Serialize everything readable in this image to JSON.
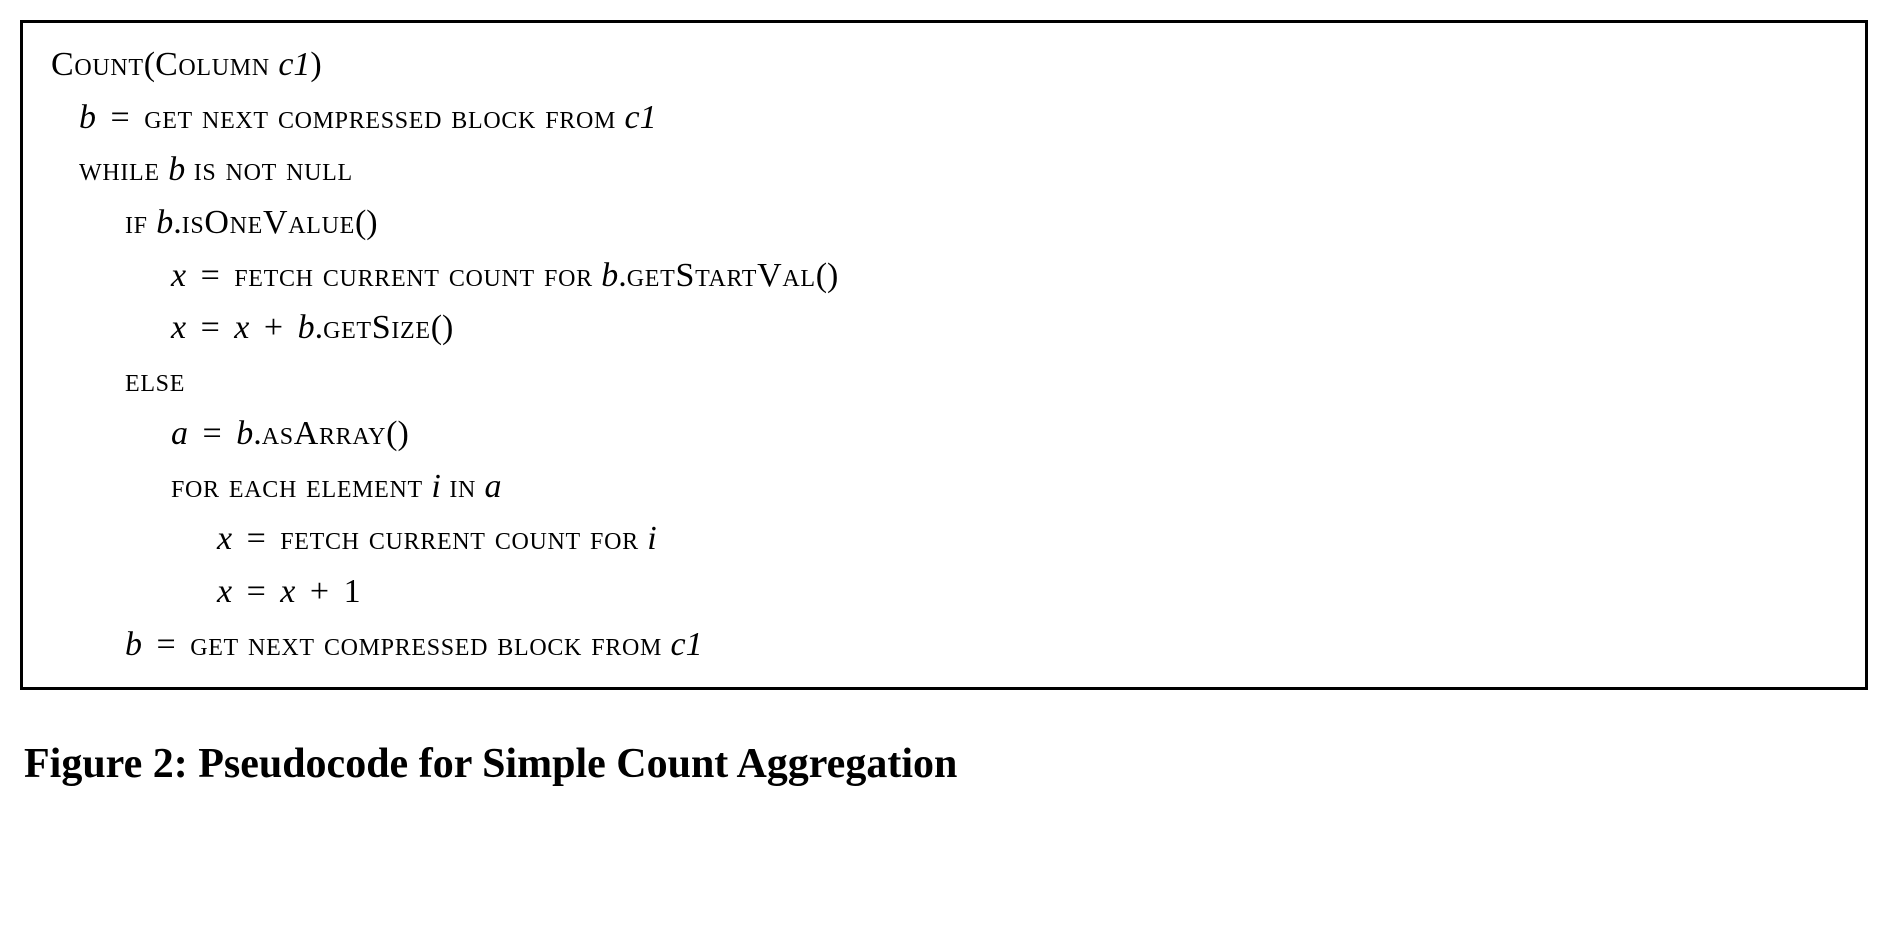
{
  "figure": {
    "caption_label": "Figure 2:",
    "caption_text": "Pseudocode for Simple Count Aggregation",
    "box_border_color": "#000000",
    "background_color": "#ffffff",
    "text_color": "#000000",
    "fontsize_body": 34,
    "fontsize_caption": 42,
    "line_height": 1.55
  },
  "code": {
    "fn_name": "Count",
    "fn_arg_type": "Column",
    "fn_arg_name": "c1",
    "kw_get_next": "get next compressed block from",
    "kw_while": "while",
    "kw_is_not_null": "is not null",
    "kw_if": "if",
    "kw_else": "else",
    "kw_for_each": "for each element",
    "kw_in": "in",
    "kw_fetch": "fetch current count for",
    "var_b": "b",
    "var_x": "x",
    "var_a": "a",
    "var_i": "i",
    "var_c1": "c1",
    "m_isOneValue": "isOneValue",
    "m_getStartVal": "getStartVal",
    "m_getSize": "getSize",
    "m_asArray": "asArray",
    "lit_one": "1",
    "op_eq": "=",
    "op_plus": "+",
    "paren_open": "(",
    "paren_close": ")",
    "dot": "."
  }
}
